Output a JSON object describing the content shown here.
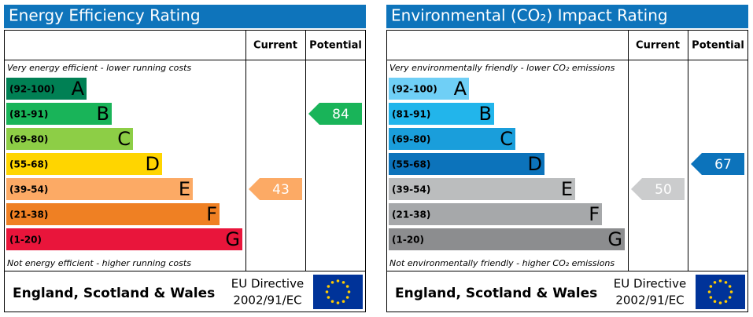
{
  "panels": [
    {
      "title": "Energy Efficiency Rating",
      "columns": [
        "Current",
        "Potential"
      ],
      "top_note": "Very energy efficient - lower running costs",
      "bottom_note": "Not energy efficient - higher running costs",
      "bands": [
        {
          "range": "(92-100)",
          "letter": "A",
          "color": "#008054"
        },
        {
          "range": "(81-91)",
          "letter": "B",
          "color": "#19b459"
        },
        {
          "range": "(69-80)",
          "letter": "C",
          "color": "#8dce46"
        },
        {
          "range": "(55-68)",
          "letter": "D",
          "color": "#ffd500"
        },
        {
          "range": "(39-54)",
          "letter": "E",
          "color": "#fcaa65"
        },
        {
          "range": "(21-38)",
          "letter": "F",
          "color": "#ef8023"
        },
        {
          "range": "(1-20)",
          "letter": "G",
          "color": "#e9153b"
        }
      ],
      "current": {
        "value": 43,
        "color": "#fcaa65"
      },
      "potential": {
        "value": 84,
        "color": "#19b459"
      },
      "footer": {
        "region": "England, Scotland & Wales",
        "directive": "EU Directive",
        "code": "2002/91/EC"
      }
    },
    {
      "title": "Environmental (CO₂) Impact Rating",
      "columns": [
        "Current",
        "Potential"
      ],
      "top_note": "Very environmentally friendly - lower CO₂ emissions",
      "bottom_note": "Not environmentally friendly - higher CO₂ emissions",
      "bands": [
        {
          "range": "(92-100)",
          "letter": "A",
          "color": "#6fcff6"
        },
        {
          "range": "(81-91)",
          "letter": "B",
          "color": "#22b5eb"
        },
        {
          "range": "(69-80)",
          "letter": "C",
          "color": "#1a9edb"
        },
        {
          "range": "(55-68)",
          "letter": "D",
          "color": "#0c73bb"
        },
        {
          "range": "(39-54)",
          "letter": "E",
          "color": "#bbbdbe"
        },
        {
          "range": "(21-38)",
          "letter": "F",
          "color": "#a6a8aa"
        },
        {
          "range": "(1-20)",
          "letter": "G",
          "color": "#8c8d8f"
        }
      ],
      "current": {
        "value": 50,
        "color": "#cbcccd"
      },
      "potential": {
        "value": 67,
        "color": "#0c73bb"
      },
      "footer": {
        "region": "England, Scotland & Wales",
        "directive": "EU Directive",
        "code": "2002/91/EC"
      }
    }
  ]
}
